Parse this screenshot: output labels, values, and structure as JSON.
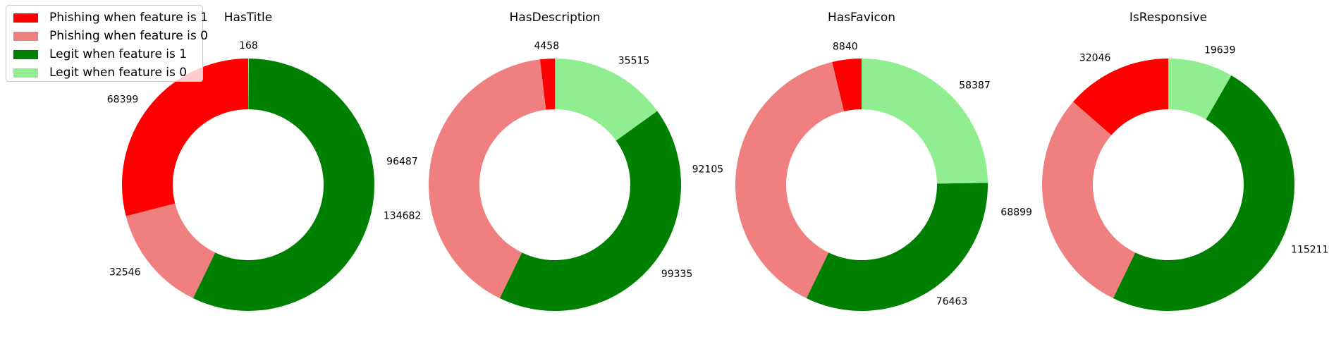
{
  "chart_data": {
    "type": "pie",
    "style": "donut",
    "categories": [
      "Phishing when feature is 1",
      "Phishing when feature is 0",
      "Legit when feature is 1",
      "Legit when feature is 0"
    ],
    "colors": [
      "#ff0000",
      "#f08080",
      "#008000",
      "#90ee90"
    ],
    "legend": {
      "placement": "top-left",
      "items": [
        {
          "label": "Phishing when feature is 1",
          "color": "#ff0000"
        },
        {
          "label": "Phishing when feature is 0",
          "color": "#f08080"
        },
        {
          "label": "Legit when feature is 1",
          "color": "#008000"
        },
        {
          "label": "Legit when feature is 0",
          "color": "#90ee90"
        }
      ]
    },
    "charts": [
      {
        "title": "HasTitle",
        "slices": [
          {
            "category": "Phishing when feature is 1",
            "value": 68399
          },
          {
            "category": "Phishing when feature is 0",
            "value": 32546
          },
          {
            "category": "Legit when feature is 1",
            "value": 134682
          },
          {
            "category": "Legit when feature is 0",
            "value": 168
          }
        ]
      },
      {
        "title": "HasDescription",
        "slices": [
          {
            "category": "Phishing when feature is 1",
            "value": 4458
          },
          {
            "category": "Phishing when feature is 0",
            "value": 96487
          },
          {
            "category": "Legit when feature is 1",
            "value": 99335
          },
          {
            "category": "Legit when feature is 0",
            "value": 35515
          }
        ]
      },
      {
        "title": "HasFavicon",
        "slices": [
          {
            "category": "Phishing when feature is 1",
            "value": 8840
          },
          {
            "category": "Phishing when feature is 0",
            "value": 92105
          },
          {
            "category": "Legit when feature is 1",
            "value": 76463
          },
          {
            "category": "Legit when feature is 0",
            "value": 58387
          }
        ]
      },
      {
        "title": "IsResponsive",
        "slices": [
          {
            "category": "Phishing when feature is 1",
            "value": 32046
          },
          {
            "category": "Phishing when feature is 0",
            "value": 68899
          },
          {
            "category": "Legit when feature is 1",
            "value": 115211
          },
          {
            "category": "Legit when feature is 0",
            "value": 19639
          }
        ]
      }
    ]
  }
}
